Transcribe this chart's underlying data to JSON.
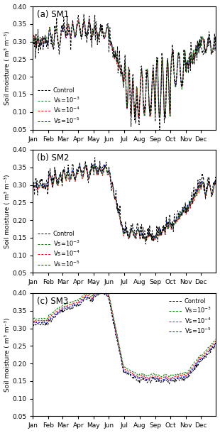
{
  "title_a": "(a) SM1",
  "title_b": "(b) SM2",
  "title_c": "(c) SM3",
  "ylabel": "Soil moisture ( m³ m⁻³)",
  "xlabel_months": [
    "Jan",
    "Feb",
    "Mar",
    "Apr",
    "May",
    "Jun",
    "Jul",
    "Aug",
    "Sep",
    "Oct",
    "Nov",
    "Dec"
  ],
  "ylim": [
    0.05,
    0.4
  ],
  "yticks": [
    0.05,
    0.1,
    0.15,
    0.2,
    0.25,
    0.3,
    0.35,
    0.4
  ],
  "legend_labels_raw": [
    "Control",
    "Vs=10$^{-3}$",
    "Vs=10$^{-4}$",
    "Vs=10$^{-5}$"
  ],
  "line_colors": [
    "black",
    "green",
    "red",
    "blue"
  ],
  "background_color": "white",
  "month_days": [
    0,
    31,
    59,
    90,
    120,
    151,
    181,
    212,
    243,
    273,
    304,
    334
  ],
  "n_days": 365
}
